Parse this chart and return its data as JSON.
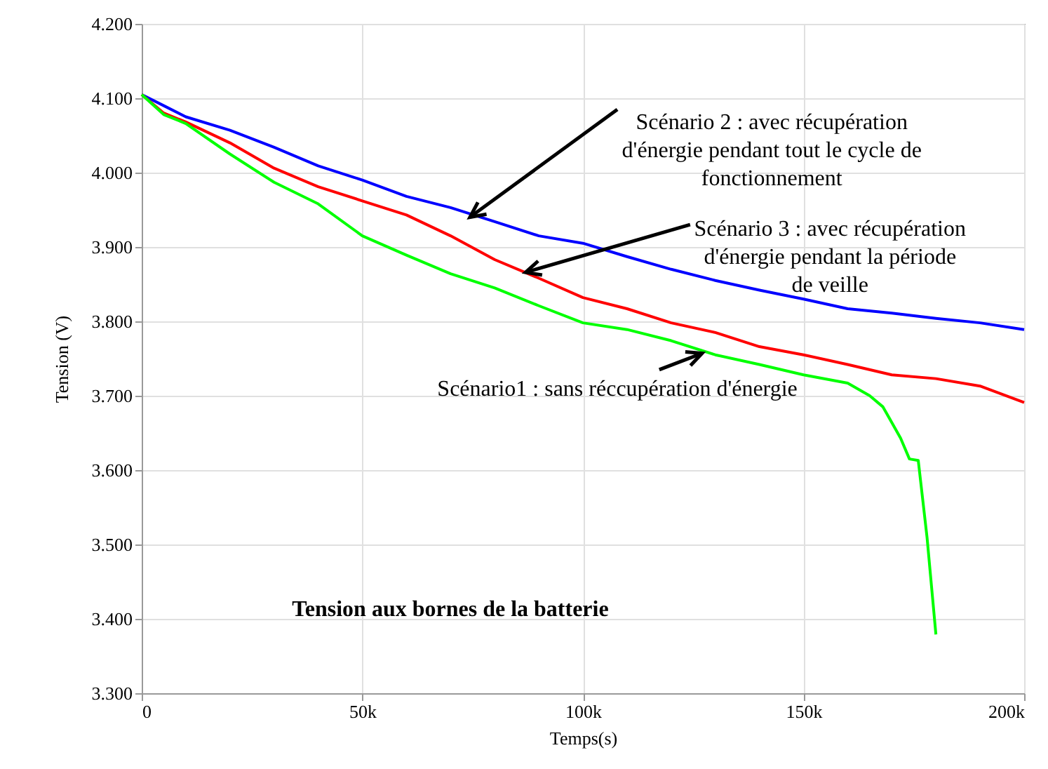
{
  "chart_data": {
    "type": "line",
    "xlabel": "Temps(s)",
    "ylabel": "Tension (V)",
    "x": [
      0,
      5000,
      10000,
      20000,
      30000,
      40000,
      50000,
      60000,
      70000,
      80000,
      90000,
      100000,
      110000,
      120000,
      130000,
      140000,
      150000,
      160000,
      170000,
      180000,
      190000,
      200000
    ],
    "series": [
      {
        "color": "#0000ff",
        "values": [
          4.105,
          4.09,
          4.075,
          4.057,
          4.034,
          4.009,
          3.99,
          3.968,
          3.953,
          3.934,
          3.915,
          3.905,
          3.887,
          3.87,
          3.855,
          3.842,
          3.83,
          3.817,
          3.811,
          3.804,
          3.798,
          3.789
        ]
      },
      {
        "color": "#ff0000",
        "values": [
          4.105,
          4.08,
          4.068,
          4.04,
          4.006,
          3.981,
          3.962,
          3.943,
          3.915,
          3.883,
          3.858,
          3.832,
          3.817,
          3.798,
          3.785,
          3.766,
          3.755,
          3.742,
          3.728,
          3.723,
          3.713,
          3.691
        ]
      },
      {
        "color": "#00ff00",
        "x": [
          0,
          5000,
          10000,
          20000,
          30000,
          40000,
          50000,
          60000,
          70000,
          80000,
          90000,
          100000,
          110000,
          120000,
          130000,
          140000,
          150000,
          160000,
          165000,
          168000,
          172000,
          174000,
          176000,
          178000,
          180000
        ],
        "values": [
          4.105,
          4.078,
          4.066,
          4.025,
          3.987,
          3.958,
          3.915,
          3.889,
          3.864,
          3.845,
          3.821,
          3.798,
          3.789,
          3.774,
          3.755,
          3.742,
          3.728,
          3.717,
          3.7,
          3.685,
          3.643,
          3.615,
          3.613,
          3.509,
          3.379
        ]
      }
    ],
    "xlim": [
      0,
      200000
    ],
    "xticks": [
      {
        "value": 0,
        "label": "0"
      },
      {
        "value": 50000,
        "label": "50k"
      },
      {
        "value": 100000,
        "label": "100k"
      },
      {
        "value": 150000,
        "label": "150k"
      },
      {
        "value": 200000,
        "label": "200k"
      }
    ],
    "ylim": [
      3.3,
      4.2
    ],
    "yticks": [
      {
        "value": 3.3,
        "label": "3.300"
      },
      {
        "value": 3.4,
        "label": "3.400"
      },
      {
        "value": 3.5,
        "label": "3.500"
      },
      {
        "value": 3.6,
        "label": "3.600"
      },
      {
        "value": 3.7,
        "label": "3.700"
      },
      {
        "value": 3.8,
        "label": "3.800"
      },
      {
        "value": 3.9,
        "label": "3.900"
      },
      {
        "value": 4.0,
        "label": "4.000"
      },
      {
        "value": 4.1,
        "label": "4.100"
      },
      {
        "value": 4.2,
        "label": "4.200"
      }
    ],
    "annotations": [
      {
        "text": "Scénario 2 : avec récupération d'énergie pendant tout le cycle de fonctionnement",
        "x": 74400,
        "y": 3.94
      },
      {
        "text": "Scénario 3 : avec récupération d'énergie pendant la période de veille",
        "x": 87000,
        "y": 3.866
      },
      {
        "text": "Scénario1 : sans réccupération d'énergie",
        "x": 127000,
        "y": 3.757
      },
      "Tension aux bornes de la batterie"
    ],
    "grid": true,
    "line_style": "solid",
    "marker": "none"
  }
}
